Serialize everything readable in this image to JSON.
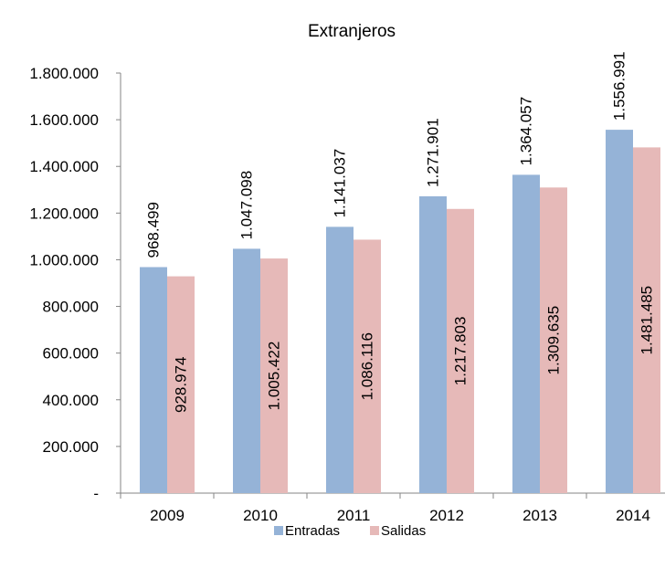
{
  "chart_data": {
    "type": "bar",
    "title": "Extranjeros",
    "categories": [
      "2009",
      "2010",
      "2011",
      "2012",
      "2013",
      "2014"
    ],
    "series": [
      {
        "name": "Entradas",
        "color": "#95b3d7",
        "values": [
          968499,
          1047098,
          1141037,
          1271901,
          1364057,
          1556991
        ],
        "labels": [
          "968.499",
          "1.047.098",
          "1.141.037",
          "1.271.901",
          "1.364.057",
          "1.556.991"
        ],
        "label_position": "outside-end-vertical"
      },
      {
        "name": "Salidas",
        "color": "#e6b9b8",
        "values": [
          928974,
          1005422,
          1086116,
          1217803,
          1309635,
          1481485
        ],
        "labels": [
          "928.974",
          "1.005.422",
          "1.086.116",
          "1.217.803",
          "1.309.635",
          "1.481.485"
        ],
        "label_position": "inside-center-vertical"
      }
    ],
    "ylim": [
      0,
      1800000
    ],
    "yticks": [
      0,
      200000,
      400000,
      600000,
      800000,
      1000000,
      1200000,
      1400000,
      1600000,
      1800000
    ],
    "ytick_labels": [
      "-",
      "200.000",
      "400.000",
      "600.000",
      "800.000",
      "1.000.000",
      "1.200.000",
      "1.400.000",
      "1.600.000",
      "1.800.000"
    ],
    "xlabel": "",
    "ylabel": "",
    "grid": false,
    "legend": "bottom"
  }
}
